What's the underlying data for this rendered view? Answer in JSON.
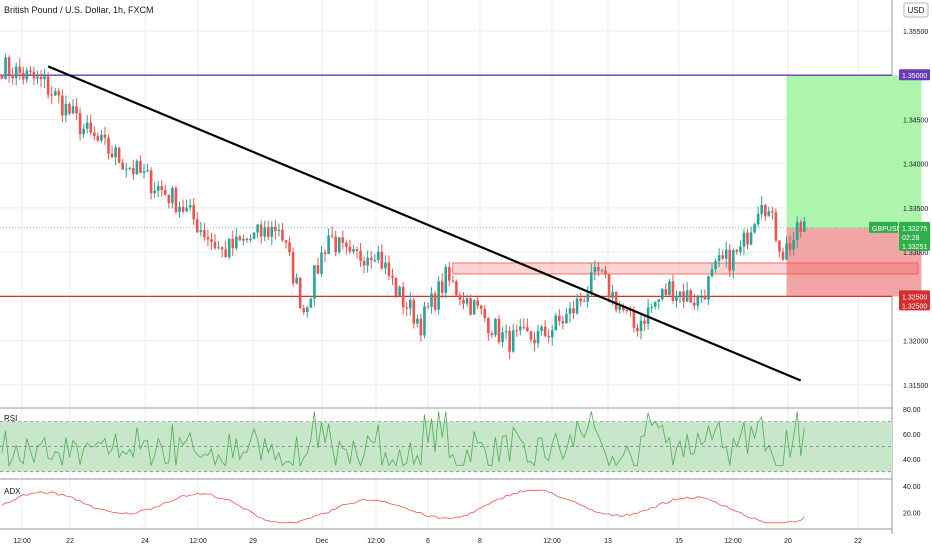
{
  "header": {
    "symbol_title": "British Pound / U.S. Dollar, 1h, FXCM",
    "currency": "USD"
  },
  "colors": {
    "up": "#26a69a",
    "down": "#ef5350",
    "trendline": "#000000",
    "resistance": "#673ab7",
    "support": "#d32f2f",
    "target_zone": "#adf5ad",
    "stop_zone": "#f2a5a5",
    "grid": "#ededed",
    "rsi_band": "#c8e6c9",
    "rsi_line": "#4caf50",
    "adx_line": "#ef5350",
    "price_label": "#2eaf4a"
  },
  "main": {
    "price_ticks": [
      "1.35500",
      "1.35000",
      "1.34500",
      "1.34000",
      "1.33500",
      "1.33000",
      "1.32500",
      "1.32000",
      "1.31500"
    ],
    "resistance_label": "1.35000",
    "support_labels": [
      "1.32500",
      "1.32500"
    ],
    "last_price": {
      "symbol": "GBPUSD",
      "price": "1.33275",
      "countdown": "02:28",
      "second_price": "1.33251"
    }
  },
  "time_axis": {
    "labels": [
      "12:00",
      "22",
      "24",
      "12:00",
      "29",
      "Dec",
      "12:00",
      "6",
      "8",
      "12:00",
      "13",
      "15",
      "12:00",
      "20",
      "22"
    ]
  },
  "rsi_panel": {
    "name": "RSI",
    "ticks": [
      "80.00",
      "60.00",
      "40.00"
    ]
  },
  "adx_panel": {
    "name": "ADX",
    "ticks": [
      "40.00",
      "20.00"
    ]
  },
  "chart_data": {
    "type": "candlestick",
    "symbol": "GBPUSD",
    "timeframe": "1h",
    "ylim": [
      1.3125,
      1.3585
    ],
    "candle_count": 250,
    "key_points": [
      {
        "index": 0,
        "price": 1.351
      },
      {
        "index": 12,
        "price": 1.349
      },
      {
        "index": 25,
        "price": 1.343
      },
      {
        "index": 50,
        "price": 1.3355
      },
      {
        "index": 62,
        "price": 1.33
      },
      {
        "index": 78,
        "price": 1.333
      },
      {
        "index": 85,
        "price": 1.3235
      },
      {
        "index": 92,
        "price": 1.332
      },
      {
        "index": 98,
        "price": 1.329
      },
      {
        "index": 105,
        "price": 1.3305
      },
      {
        "index": 112,
        "price": 1.325
      },
      {
        "index": 118,
        "price": 1.322
      },
      {
        "index": 125,
        "price": 1.327
      },
      {
        "index": 135,
        "price": 1.323
      },
      {
        "index": 142,
        "price": 1.32
      },
      {
        "index": 152,
        "price": 1.3205
      },
      {
        "index": 160,
        "price": 1.323
      },
      {
        "index": 168,
        "price": 1.3275
      },
      {
        "index": 178,
        "price": 1.3215
      },
      {
        "index": 188,
        "price": 1.326
      },
      {
        "index": 196,
        "price": 1.3245
      },
      {
        "index": 202,
        "price": 1.3285
      },
      {
        "index": 208,
        "price": 1.33
      },
      {
        "index": 214,
        "price": 1.3365
      },
      {
        "index": 220,
        "price": 1.33
      },
      {
        "index": 226,
        "price": 1.333
      }
    ],
    "trendline": {
      "from": {
        "index": 13,
        "price": 1.351
      },
      "to": {
        "index": 225,
        "price": 1.3155
      }
    },
    "resistance_level": 1.35,
    "support_level": 1.325,
    "demand_zone": {
      "from_index": 127,
      "to_index": 258,
      "low": 1.3278,
      "high": 1.3281
    },
    "position": {
      "from_index": 221,
      "to_index": 259,
      "entry": 1.33275,
      "target": 1.35,
      "stop": 1.325
    },
    "rsi": {
      "ylim": [
        25,
        80
      ],
      "upper": 70,
      "middle": 50,
      "lower": 30,
      "approx_range": [
        35,
        78
      ]
    },
    "adx": {
      "ylim": [
        8,
        44
      ],
      "approx_range": [
        12,
        38
      ]
    }
  }
}
